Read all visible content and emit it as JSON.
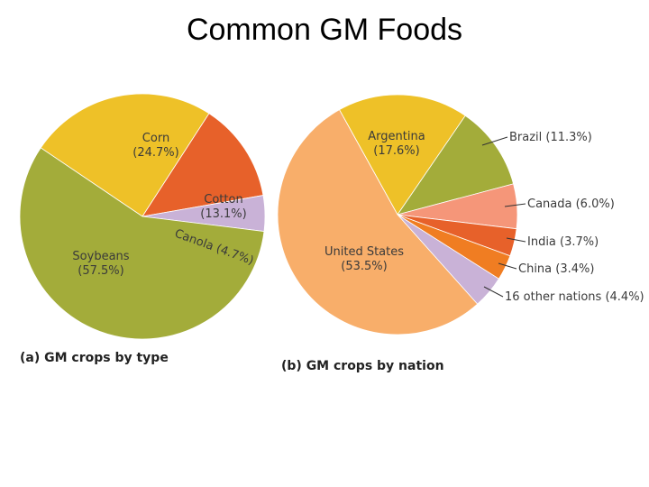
{
  "slide": {
    "title": "Common GM Foods"
  },
  "chart_data": [
    {
      "type": "pie",
      "caption": "(a) GM crops by type",
      "slices": [
        {
          "name": "Corn",
          "percent": 24.7,
          "line1": "Corn",
          "line2": "(24.7%)",
          "color": "#eec128"
        },
        {
          "name": "Cotton",
          "percent": 13.1,
          "line1": "Cotton",
          "line2": "(13.1%)",
          "color": "#e7612a"
        },
        {
          "name": "Canola",
          "percent": 4.7,
          "line1": "Canola (4.7%)",
          "line2": "",
          "color": "#c9b2d7"
        },
        {
          "name": "Soybeans",
          "percent": 57.5,
          "line1": "Soybeans",
          "line2": "(57.5%)",
          "color": "#a3ac3a"
        }
      ]
    },
    {
      "type": "pie",
      "caption": "(b) GM crops by nation",
      "slices": [
        {
          "name": "Argentina",
          "percent": 17.6,
          "line1": "Argentina",
          "line2": "(17.6%)",
          "color": "#eec128"
        },
        {
          "name": "Brazil",
          "percent": 11.3,
          "line1": "Brazil (11.3%)",
          "line2": "",
          "color": "#a3ac3a"
        },
        {
          "name": "Canada",
          "percent": 6.0,
          "line1": "Canada (6.0%)",
          "line2": "",
          "color": "#f59679"
        },
        {
          "name": "India",
          "percent": 3.7,
          "line1": "India (3.7%)",
          "line2": "",
          "color": "#e7612a"
        },
        {
          "name": "China",
          "percent": 3.4,
          "line1": "China (3.4%)",
          "line2": "",
          "color": "#f07d22"
        },
        {
          "name": "16 other nations",
          "percent": 4.4,
          "line1": "16 other nations (4.4%)",
          "line2": "",
          "color": "#c9b2d7"
        },
        {
          "name": "United States",
          "percent": 53.5,
          "line1": "United States",
          "line2": "(53.5%)",
          "color": "#f8ae6a"
        }
      ]
    }
  ]
}
